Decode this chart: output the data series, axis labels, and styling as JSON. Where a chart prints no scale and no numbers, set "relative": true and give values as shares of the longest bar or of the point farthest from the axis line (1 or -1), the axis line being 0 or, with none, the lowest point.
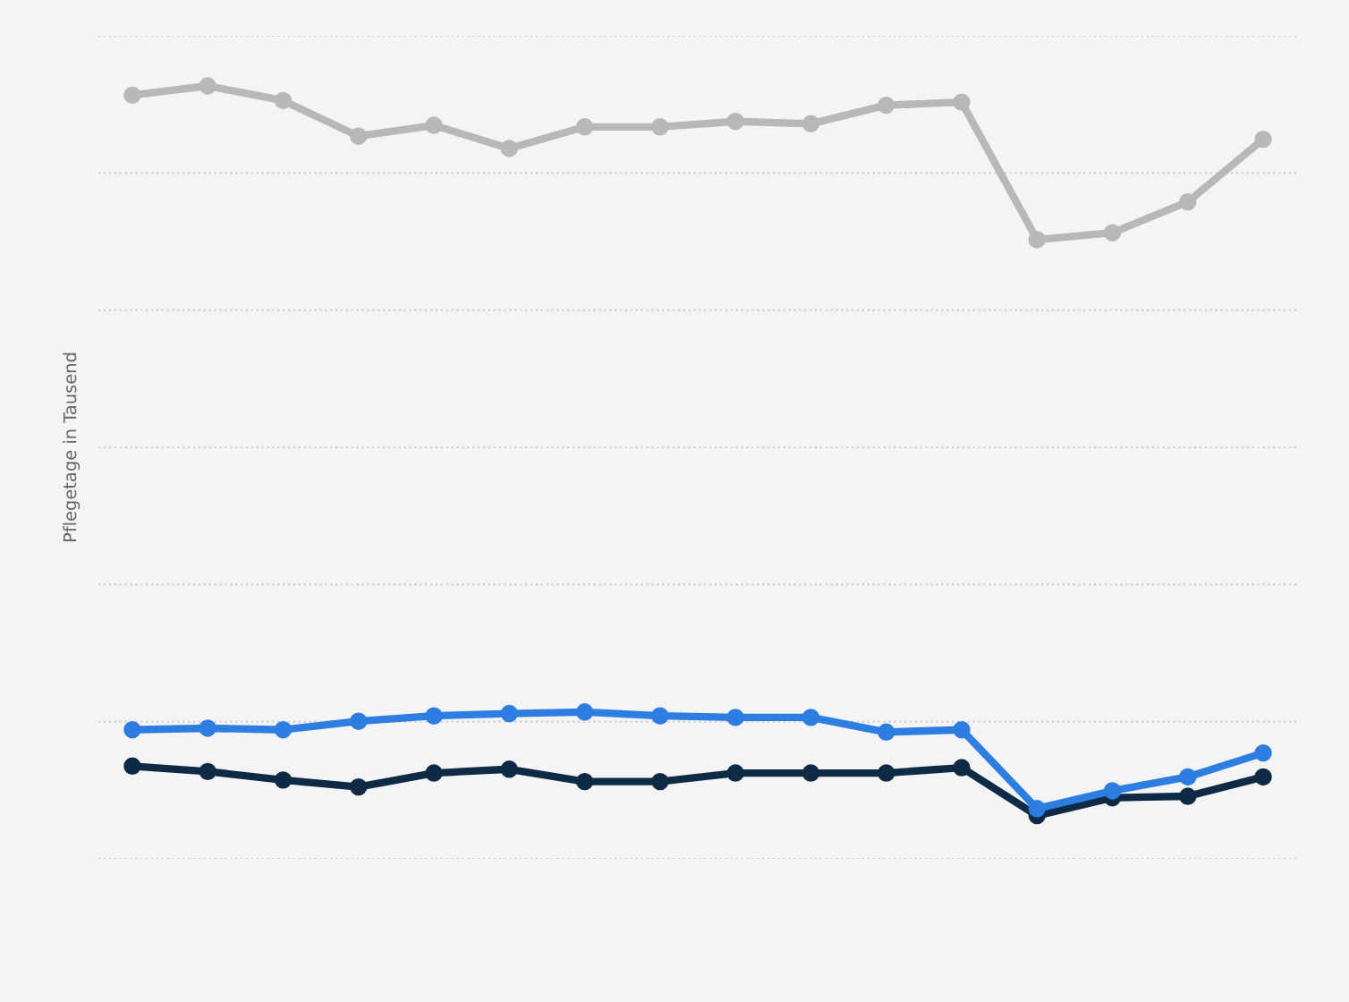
{
  "chart_data": {
    "type": "line",
    "relative": true,
    "ylabel": "Pflegetage in Tausend",
    "categories": [
      null,
      null,
      null,
      null,
      null,
      null,
      null,
      null,
      null,
      null,
      null,
      null,
      null,
      null,
      null,
      null
    ],
    "series": [
      {
        "color": "#b8b8b8",
        "values": [
          0.988,
          1.0,
          0.981,
          0.935,
          0.949,
          0.919,
          0.947,
          0.947,
          0.954,
          0.951,
          0.975,
          0.979,
          0.801,
          0.81,
          0.85,
          0.931
        ]
      },
      {
        "color": "#2e7de1",
        "values": [
          0.167,
          0.169,
          0.167,
          0.178,
          0.185,
          0.188,
          0.19,
          0.185,
          0.183,
          0.183,
          0.164,
          0.167,
          0.065,
          0.088,
          0.106,
          0.137
        ]
      },
      {
        "color": "#0f2a44",
        "values": [
          0.12,
          0.113,
          0.102,
          0.093,
          0.111,
          0.116,
          0.1,
          0.1,
          0.111,
          0.111,
          0.111,
          0.118,
          0.056,
          0.079,
          0.081,
          0.106
        ]
      }
    ],
    "grid": "y",
    "marker": "circle",
    "line_style": "solid",
    "legend": false
  }
}
